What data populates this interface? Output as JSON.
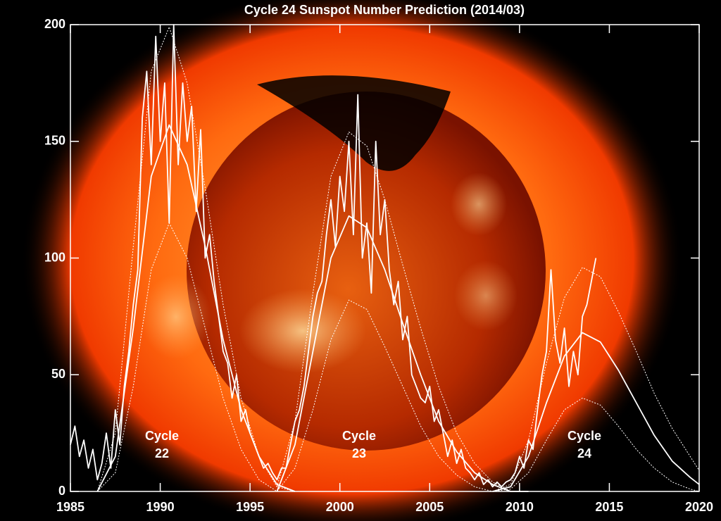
{
  "chart_data": {
    "type": "line",
    "title": "Cycle 24 Sunspot Number Prediction (2014/03)",
    "xlim": [
      1985,
      2020
    ],
    "xticks": [
      1985,
      1990,
      1995,
      2000,
      2005,
      2010,
      2015,
      2020
    ],
    "ylim": [
      0,
      200
    ],
    "yticks": [
      0,
      50,
      100,
      150,
      200
    ],
    "annotations": [
      [
        "Cycle",
        "22"
      ],
      [
        "Cycle",
        "23"
      ],
      [
        "Cycle",
        "24"
      ]
    ],
    "series": [
      {
        "color": "#ffffff",
        "dash": false,
        "x": [
          1985,
          1985.25,
          1985.5,
          1985.75,
          1986,
          1986.25,
          1986.5,
          1986.75,
          1987,
          1987.25,
          1987.5,
          1987.75,
          1988,
          1988.25,
          1988.5,
          1988.75,
          1989,
          1989.25,
          1989.5,
          1989.75,
          1990,
          1990.25,
          1990.5,
          1990.75,
          1991,
          1991.25,
          1991.5,
          1991.75,
          1992,
          1992.25,
          1992.5,
          1992.75,
          1993,
          1993.25,
          1993.5,
          1993.75,
          1994,
          1994.25,
          1994.5,
          1994.75,
          1995,
          1995.25,
          1995.5,
          1995.75,
          1996,
          1996.25,
          1996.5,
          1996.75,
          1997,
          1997.25,
          1997.5,
          1997.75,
          1998,
          1998.25,
          1998.5,
          1998.75,
          1999,
          1999.25,
          1999.5,
          1999.75,
          2000,
          2000.25,
          2000.5,
          2000.75,
          2001,
          2001.25,
          2001.5,
          2001.75,
          2002,
          2002.25,
          2002.5,
          2002.75,
          2003,
          2003.25,
          2003.5,
          2003.75,
          2004,
          2004.25,
          2004.5,
          2004.75,
          2005,
          2005.25,
          2005.5,
          2005.75,
          2006,
          2006.25,
          2006.5,
          2006.75,
          2007,
          2007.25,
          2007.5,
          2007.75,
          2008,
          2008.25,
          2008.5,
          2008.75,
          2009,
          2009.25,
          2009.5,
          2009.75,
          2010,
          2010.25,
          2010.5,
          2010.75,
          2011,
          2011.25,
          2011.5,
          2011.75,
          2012,
          2012.25,
          2012.5,
          2012.75,
          2013,
          2013.25,
          2013.5,
          2013.75,
          2014,
          2014.25
        ],
        "values": [
          20,
          28,
          15,
          22,
          10,
          18,
          5,
          12,
          25,
          10,
          35,
          20,
          45,
          60,
          80,
          95,
          160,
          180,
          140,
          195,
          150,
          175,
          115,
          200,
          140,
          175,
          150,
          165,
          120,
          155,
          100,
          110,
          90,
          75,
          60,
          55,
          40,
          50,
          30,
          35,
          25,
          20,
          15,
          10,
          12,
          8,
          5,
          10,
          10,
          20,
          30,
          35,
          45,
          60,
          75,
          85,
          90,
          110,
          125,
          105,
          135,
          120,
          150,
          110,
          170,
          100,
          115,
          85,
          150,
          110,
          125,
          95,
          80,
          90,
          65,
          75,
          50,
          45,
          40,
          38,
          45,
          30,
          35,
          25,
          15,
          22,
          12,
          18,
          10,
          8,
          5,
          8,
          3,
          5,
          2,
          4,
          2,
          4,
          5,
          8,
          15,
          10,
          22,
          18,
          35,
          50,
          60,
          95,
          65,
          55,
          70,
          45,
          60,
          50,
          75,
          80,
          90,
          100
        ]
      },
      {
        "color": "#ffffff",
        "dash": false,
        "x": [
          1986.5,
          1987.5,
          1988.5,
          1989.5,
          1990.5,
          1991.5,
          1992.5,
          1993.5,
          1994.5,
          1995.5,
          1996.5,
          1997.5
        ],
        "values": [
          0,
          15,
          70,
          135,
          157,
          140,
          105,
          65,
          35,
          15,
          3,
          0
        ]
      },
      {
        "color": "#ffffff",
        "dash": true,
        "x": [
          1986.5,
          1987.5,
          1988.5,
          1989.5,
          1990.5,
          1991.5,
          1992.5,
          1993.5,
          1994.5,
          1995.5,
          1996.5,
          1997.5
        ],
        "values": [
          0,
          25,
          105,
          180,
          199,
          175,
          130,
          80,
          40,
          15,
          2,
          0
        ]
      },
      {
        "color": "#ffffff",
        "dash": true,
        "x": [
          1986.5,
          1987.5,
          1988.5,
          1989.5,
          1990.5,
          1991.5,
          1992.5,
          1993.5,
          1994.5,
          1995.5,
          1996.5,
          1997.5
        ],
        "values": [
          0,
          8,
          45,
          95,
          115,
          100,
          70,
          40,
          18,
          5,
          0,
          0
        ]
      },
      {
        "color": "#ffffff",
        "dash": false,
        "x": [
          1996.5,
          1997.5,
          1998.5,
          1999.5,
          2000.5,
          2001.5,
          2002.5,
          2003.5,
          2004.5,
          2005.5,
          2006.5,
          2007.5,
          2008.5,
          2009.5,
          2010.5
        ],
        "values": [
          0,
          20,
          60,
          100,
          118,
          113,
          95,
          72,
          50,
          30,
          17,
          8,
          3,
          0,
          0
        ]
      },
      {
        "color": "#ffffff",
        "dash": true,
        "x": [
          1996.5,
          1997.5,
          1998.5,
          1999.5,
          2000.5,
          2001.5,
          2002.5,
          2003.5,
          2004.5,
          2005.5,
          2006.5,
          2007.5,
          2008.5,
          2009.5,
          2010.5
        ],
        "values": [
          2,
          30,
          85,
          135,
          154,
          148,
          125,
          97,
          70,
          45,
          25,
          12,
          4,
          0,
          0
        ]
      },
      {
        "color": "#ffffff",
        "dash": true,
        "x": [
          1996.5,
          1997.5,
          1998.5,
          1999.5,
          2000.5,
          2001.5,
          2002.5,
          2003.5,
          2004.5,
          2005.5,
          2006.5,
          2007.5,
          2008.5,
          2009.5,
          2010.5
        ],
        "values": [
          0,
          10,
          35,
          65,
          82,
          78,
          62,
          45,
          28,
          15,
          7,
          2,
          0,
          0,
          0
        ]
      },
      {
        "color": "#ffffff",
        "dash": false,
        "x": [
          2008.5,
          2009.5,
          2010.5,
          2011.5,
          2012.5,
          2013.5,
          2014.5,
          2015.5,
          2016.5,
          2017.5,
          2018.5,
          2019.5,
          2020
        ],
        "values": [
          0,
          2,
          15,
          38,
          58,
          68,
          64,
          52,
          38,
          24,
          13,
          6,
          3
        ]
      },
      {
        "color": "#ffffff",
        "dash": true,
        "x": [
          2008.5,
          2009.5,
          2010.5,
          2011.5,
          2012.5,
          2013.5,
          2014.5,
          2015.5,
          2016.5,
          2017.5,
          2018.5,
          2019.5,
          2020
        ],
        "values": [
          0,
          3,
          22,
          55,
          83,
          96,
          92,
          77,
          60,
          42,
          27,
          15,
          9
        ]
      },
      {
        "color": "#ffffff",
        "dash": true,
        "x": [
          2008.5,
          2009.5,
          2010.5,
          2011.5,
          2012.5,
          2013.5,
          2014.5,
          2015.5,
          2016.5,
          2017.5,
          2018.5,
          2019.5,
          2020
        ],
        "values": [
          0,
          1,
          8,
          22,
          35,
          40,
          37,
          28,
          18,
          10,
          4,
          1,
          0
        ]
      }
    ]
  }
}
